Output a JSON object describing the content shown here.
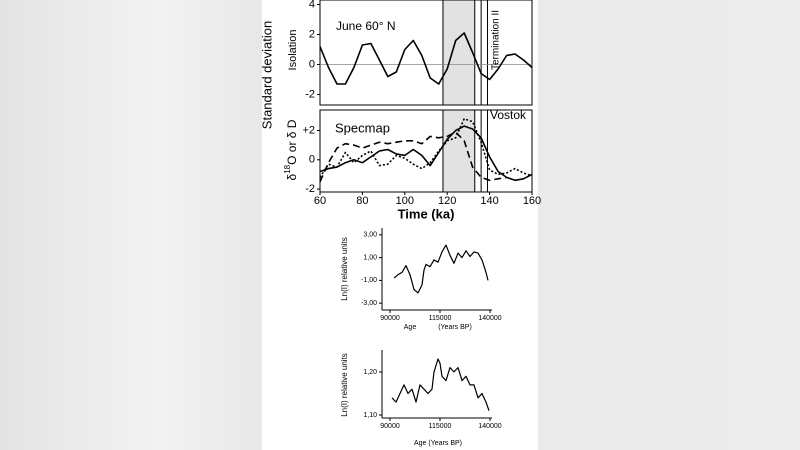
{
  "chart_data": [
    {
      "type": "line",
      "annotation": "June  60° N",
      "y_label": "Isolation",
      "group_label": "Standard deviation",
      "vline_label": "Termination II",
      "xlim": [
        60,
        160
      ],
      "ylim": [
        -2.7,
        4.3
      ],
      "yticks": [
        -2,
        0,
        2,
        4
      ],
      "shade": [
        118,
        133
      ],
      "vlines": [
        136,
        139
      ],
      "x": [
        60,
        64,
        68,
        72,
        76,
        80,
        84,
        88,
        92,
        96,
        100,
        104,
        108,
        112,
        116,
        120,
        124,
        128,
        132,
        136,
        140,
        144,
        148,
        152,
        156,
        160
      ],
      "series": [
        {
          "color": "#000000",
          "style": "solid",
          "values": [
            1.2,
            -0.2,
            -1.3,
            -1.3,
            -0.2,
            1.3,
            1.4,
            0.3,
            -0.8,
            -0.5,
            1.0,
            1.6,
            0.6,
            -0.9,
            -1.3,
            -0.3,
            1.6,
            2.1,
            0.8,
            -0.6,
            -1.0,
            -0.3,
            0.6,
            0.7,
            0.3,
            -0.2
          ]
        }
      ]
    },
    {
      "type": "line",
      "y_label_parts": [
        "δ",
        "18",
        "O or δ D"
      ],
      "x_label": "Time (ka)",
      "xlim": [
        60,
        160
      ],
      "xticks": [
        60,
        80,
        100,
        120,
        140,
        160
      ],
      "ylim": [
        -2.2,
        3.4
      ],
      "yticks": [
        -2,
        0,
        {
          "value": 2,
          "label": "+2"
        }
      ],
      "shade": [
        118,
        133
      ],
      "vlines": [
        136,
        139
      ],
      "x": [
        60,
        64,
        68,
        72,
        76,
        80,
        84,
        88,
        92,
        96,
        100,
        104,
        108,
        112,
        116,
        120,
        124,
        128,
        132,
        136,
        140,
        144,
        148,
        152,
        156,
        160
      ],
      "series": [
        {
          "name": "Specmap",
          "color": "#000000",
          "style": "solid",
          "values": [
            -0.8,
            -0.6,
            -0.5,
            -0.2,
            0.0,
            -0.2,
            0.2,
            0.6,
            0.7,
            0.4,
            0.3,
            0.7,
            0.3,
            -0.4,
            0.5,
            1.4,
            2.0,
            2.3,
            2.1,
            1.5,
            0.2,
            -0.8,
            -1.2,
            -1.4,
            -1.3,
            -1.0
          ]
        },
        {
          "color": "#000000",
          "style": "dashed",
          "values": [
            -1.5,
            -0.2,
            0.8,
            1.1,
            1.0,
            0.8,
            1.0,
            1.2,
            1.1,
            1.2,
            1.3,
            1.3,
            1.1,
            1.6,
            1.5,
            1.6,
            1.9,
            1.3,
            -0.5,
            -1.2,
            -1.4,
            -1.3,
            -1.2,
            null,
            null,
            null
          ]
        },
        {
          "name": "Vostok",
          "color": "#000000",
          "style": "dotted",
          "values": [
            -1.2,
            -0.3,
            -0.5,
            0.5,
            -0.2,
            0.3,
            0.6,
            -0.4,
            -0.3,
            0.3,
            0.1,
            -0.3,
            -0.6,
            -0.2,
            0.6,
            1.3,
            1.5,
            2.8,
            2.6,
            1.2,
            -0.7,
            -1.0,
            -0.9,
            -0.6,
            -0.9,
            -1.1
          ]
        }
      ]
    },
    {
      "type": "line",
      "y_label": "Ln(I) relative units",
      "x_label": "Age",
      "x_label_unit": "(Years BP)",
      "xlim": [
        86000,
        141000
      ],
      "xticks": [
        90000,
        115000,
        140000
      ],
      "ylim": [
        -3.6,
        3.6
      ],
      "yticks": [
        {
          "value": -3,
          "label": "-3,00"
        },
        {
          "value": -1,
          "label": "-1,00"
        },
        {
          "value": 1,
          "label": "1,00"
        },
        {
          "value": 3,
          "label": "3,00"
        }
      ],
      "x": [
        92000,
        94000,
        96000,
        98000,
        100000,
        102000,
        104000,
        106000,
        107000,
        108000,
        110000,
        112000,
        114000,
        116000,
        118000,
        120000,
        122000,
        124000,
        126000,
        128000,
        130000,
        132000,
        134000,
        136000,
        138000,
        139000
      ],
      "series": [
        {
          "color": "#000000",
          "style": "solid",
          "values": [
            -0.8,
            -0.5,
            -0.3,
            0.3,
            -0.5,
            -1.8,
            -2.1,
            -1.4,
            -0.1,
            0.4,
            0.2,
            0.8,
            0.6,
            1.5,
            2.1,
            1.2,
            0.5,
            1.4,
            1.0,
            1.6,
            1.1,
            1.5,
            1.4,
            0.8,
            -0.3,
            -1.0
          ]
        }
      ]
    },
    {
      "type": "line",
      "y_label": "Ln(I) relative units",
      "x_label": "Age  (Years BP)",
      "xlim": [
        86000,
        141000
      ],
      "xticks": [
        90000,
        115000,
        140000
      ],
      "ylim": [
        1.093,
        1.251
      ],
      "yticks": [
        {
          "value": 1.1,
          "label": "1,10"
        },
        {
          "value": 1.2,
          "label": "1,20"
        }
      ],
      "x": [
        91000,
        93000,
        95000,
        97000,
        99000,
        101000,
        103000,
        105000,
        107000,
        109000,
        111000,
        112000,
        114000,
        115000,
        116000,
        118000,
        120000,
        122000,
        124000,
        126000,
        128000,
        130000,
        132000,
        134000,
        136000,
        138000,
        139500
      ],
      "series": [
        {
          "color": "#000000",
          "style": "solid",
          "values": [
            1.14,
            1.13,
            1.15,
            1.17,
            1.15,
            1.16,
            1.13,
            1.17,
            1.16,
            1.15,
            1.16,
            1.2,
            1.23,
            1.22,
            1.19,
            1.18,
            1.21,
            1.2,
            1.21,
            1.18,
            1.19,
            1.17,
            1.17,
            1.14,
            1.15,
            1.13,
            1.11
          ]
        }
      ]
    }
  ]
}
